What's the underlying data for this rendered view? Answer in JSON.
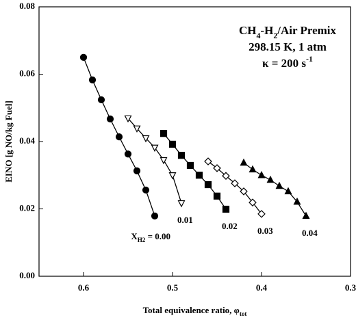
{
  "chart_data": {
    "type": "line",
    "title_lines": [
      [
        {
          "t": "CH"
        },
        {
          "t": "4",
          "shift": "sub"
        },
        {
          "t": "-H"
        },
        {
          "t": "2",
          "shift": "sub"
        },
        {
          "t": "/Air Premix"
        }
      ],
      [
        {
          "t": "298.15 K, 1 atm"
        }
      ],
      [
        {
          "t": "κ = 200 s"
        },
        {
          "t": "-1",
          "shift": "sup"
        }
      ]
    ],
    "xlabel": [
      {
        "t": "Total equivalence ratio, φ"
      },
      {
        "t": "tot",
        "shift": "sub"
      }
    ],
    "ylabel": "EINO [g NO/kg Fuel]",
    "label_prefix": [
      {
        "t": "X"
      },
      {
        "t": "H2",
        "shift": "sub"
      },
      {
        "t": " = "
      }
    ],
    "xlim": [
      0.65,
      0.3
    ],
    "xticks": [
      0.6,
      0.5,
      0.4,
      0.3
    ],
    "ylim": [
      0,
      0.08
    ],
    "yticks": [
      {
        "value": 0,
        "label": "0.00"
      },
      {
        "value": 0.02,
        "label": "0.02"
      },
      {
        "value": 0.04,
        "label": "0.04"
      },
      {
        "value": 0.06,
        "label": "0.06"
      },
      {
        "value": 0.08,
        "label": "0.08"
      }
    ],
    "series": [
      {
        "name": "0.00",
        "color": "#000000",
        "marker": "circle",
        "filled": true,
        "x": [
          0.6,
          0.59,
          0.58,
          0.57,
          0.56,
          0.55,
          0.54,
          0.53,
          0.52
        ],
        "values": [
          0.065,
          0.0583,
          0.0524,
          0.0467,
          0.0414,
          0.0363,
          0.0313,
          0.0256,
          0.0179
        ]
      },
      {
        "name": "0.01",
        "color": "#000000",
        "marker": "triangle-down",
        "filled": false,
        "x": [
          0.55,
          0.54,
          0.53,
          0.52,
          0.51,
          0.5,
          0.49
        ],
        "values": [
          0.0469,
          0.0439,
          0.041,
          0.0382,
          0.0345,
          0.03,
          0.0217
        ]
      },
      {
        "name": "0.02",
        "color": "#000000",
        "marker": "square",
        "filled": true,
        "x": [
          0.51,
          0.5,
          0.49,
          0.48,
          0.47,
          0.46,
          0.45,
          0.44
        ],
        "values": [
          0.0424,
          0.0392,
          0.0359,
          0.0329,
          0.03,
          0.0272,
          0.0238,
          0.0199
        ]
      },
      {
        "name": "0.03",
        "color": "#000000",
        "marker": "diamond",
        "filled": false,
        "x": [
          0.46,
          0.45,
          0.44,
          0.43,
          0.42,
          0.41,
          0.4
        ],
        "values": [
          0.0341,
          0.0321,
          0.0298,
          0.0276,
          0.0252,
          0.0219,
          0.0185
        ]
      },
      {
        "name": "0.04",
        "color": "#000000",
        "marker": "triangle-up",
        "filled": true,
        "x": [
          0.42,
          0.41,
          0.4,
          0.39,
          0.38,
          0.37,
          0.36,
          0.35
        ],
        "values": [
          0.0337,
          0.0317,
          0.03,
          0.0286,
          0.0268,
          0.0252,
          0.0221,
          0.0179
        ]
      }
    ]
  }
}
